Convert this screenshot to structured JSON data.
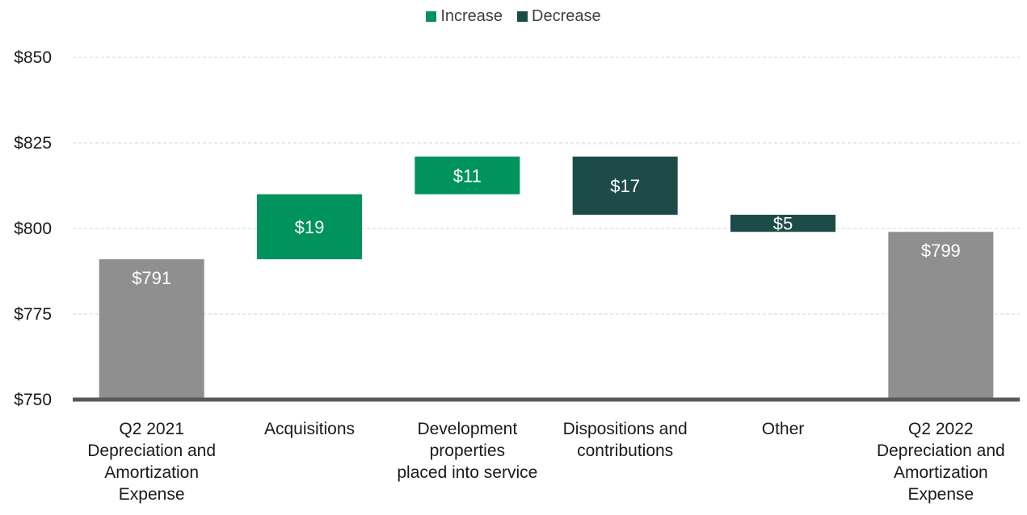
{
  "chart_data": {
    "type": "bar",
    "subtype": "waterfall",
    "legend": {
      "placement": "top-center",
      "entries": [
        {
          "name": "Increase",
          "color": "#00935e"
        },
        {
          "name": "Decrease",
          "color": "#1d4c48"
        }
      ]
    },
    "ylim": [
      750,
      850
    ],
    "yticks": [
      "$750",
      "$775",
      "$800",
      "$825",
      "$850"
    ],
    "ytick_values": [
      750,
      775,
      800,
      825,
      850
    ],
    "grid": true,
    "categories": [
      "Q2 2021 Depreciation and Amortization Expense",
      "Acquisitions",
      "Development properties placed into service",
      "Dispositions and contributions",
      "Other",
      "Q2 2022 Depreciation and Amortization Expense"
    ],
    "category_lines": [
      [
        "Q2 2021",
        "Depreciation and",
        "Amortization",
        "Expense"
      ],
      [
        "Acquisitions"
      ],
      [
        "Development",
        "properties",
        "placed into service"
      ],
      [
        "Dispositions and",
        "contributions"
      ],
      [
        "Other"
      ],
      [
        "Q2 2022",
        "Depreciation and",
        "Amortization",
        "Expense"
      ]
    ],
    "bars": [
      {
        "kind": "total",
        "start": 750,
        "end": 791,
        "label": "$791",
        "color": "#8f8f8f"
      },
      {
        "kind": "increase",
        "start": 791,
        "end": 810,
        "label": "$19",
        "color": "#00935e"
      },
      {
        "kind": "increase",
        "start": 810,
        "end": 821,
        "label": "$11",
        "color": "#00935e"
      },
      {
        "kind": "decrease",
        "start": 821,
        "end": 804,
        "label": "$17",
        "color": "#1d4c48"
      },
      {
        "kind": "decrease",
        "start": 804,
        "end": 799,
        "label": "$5",
        "color": "#1d4c48"
      },
      {
        "kind": "total",
        "start": 750,
        "end": 799,
        "label": "$799",
        "color": "#8f8f8f"
      }
    ]
  }
}
